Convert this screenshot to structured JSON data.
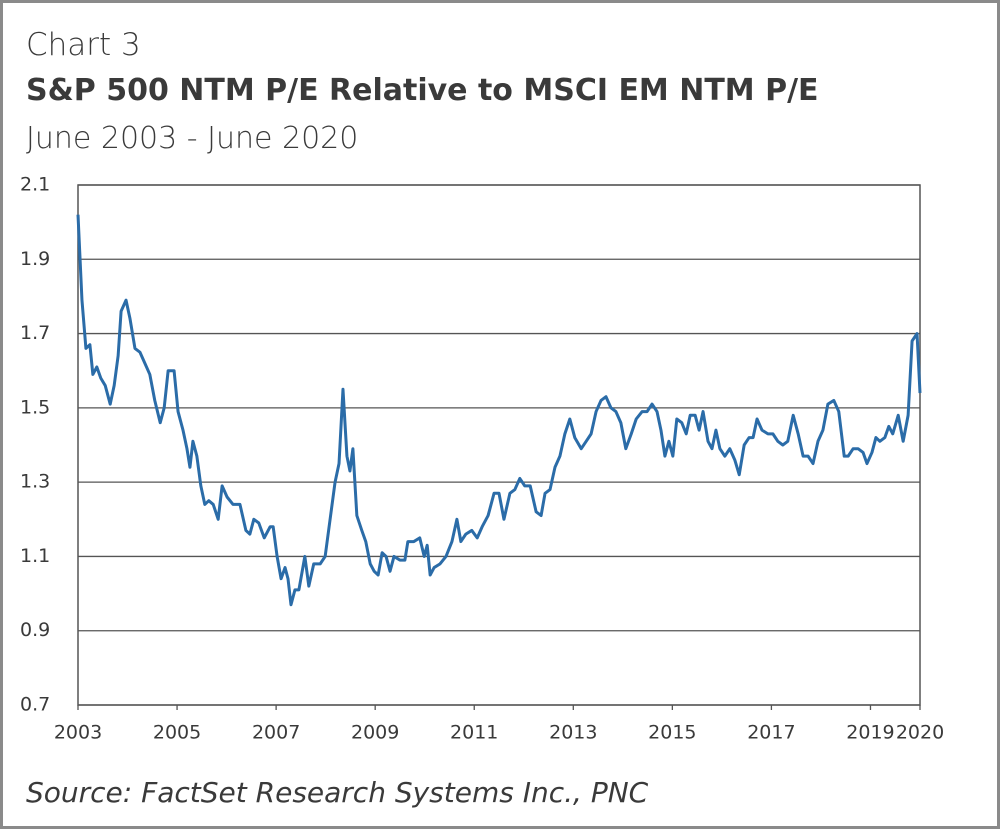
{
  "chart_data": {
    "type": "line",
    "label": "Chart 3",
    "title": "S&P 500 NTM P/E Relative to MSCI EM NTM P/E",
    "subtitle": "June 2003 - June 2020",
    "source": "Source: FactSet Research Systems Inc., PNC",
    "color": "#2b6ca8",
    "grid": true,
    "xlim": [
      2003,
      2020
    ],
    "xticks": [
      2003,
      2005,
      2007,
      2009,
      2011,
      2013,
      2015,
      2017,
      2019,
      2020
    ],
    "ylim": [
      0.7,
      2.1
    ],
    "yticks": [
      2.1,
      1.9,
      1.7,
      1.5,
      1.3,
      1.1,
      0.9,
      0.7
    ],
    "x": [
      2003.0,
      2003.08,
      2003.16,
      2003.24,
      2003.3,
      2003.38,
      2003.46,
      2003.55,
      2003.65,
      2003.73,
      2003.81,
      2003.87,
      2003.97,
      2004.05,
      2004.15,
      2004.25,
      2004.35,
      2004.45,
      2004.55,
      2004.66,
      2004.74,
      2004.82,
      2004.94,
      2005.02,
      2005.12,
      2005.2,
      2005.26,
      2005.32,
      2005.4,
      2005.48,
      2005.56,
      2005.64,
      2005.73,
      2005.83,
      2005.91,
      2006.01,
      2006.13,
      2006.27,
      2006.39,
      2006.47,
      2006.55,
      2006.65,
      2006.76,
      2006.88,
      2006.94,
      2007.02,
      2007.1,
      2007.18,
      2007.24,
      2007.3,
      2007.38,
      2007.46,
      2007.58,
      2007.66,
      2007.76,
      2007.89,
      2007.99,
      2008.09,
      2008.19,
      2008.27,
      2008.35,
      2008.43,
      2008.49,
      2008.55,
      2008.63,
      2008.73,
      2008.81,
      2008.9,
      2008.98,
      2009.06,
      2009.14,
      2009.22,
      2009.3,
      2009.38,
      2009.5,
      2009.6,
      2009.66,
      2009.78,
      2009.9,
      2009.99,
      2010.05,
      2010.11,
      2010.19,
      2010.31,
      2010.43,
      2010.55,
      2010.65,
      2010.73,
      2010.83,
      2010.95,
      2011.06,
      2011.16,
      2011.28,
      2011.4,
      2011.5,
      2011.6,
      2011.72,
      2011.82,
      2011.92,
      2012.02,
      2012.13,
      2012.25,
      2012.35,
      2012.43,
      2012.53,
      2012.63,
      2012.73,
      2012.83,
      2012.93,
      2013.03,
      2013.16,
      2013.26,
      2013.36,
      2013.46,
      2013.56,
      2013.66,
      2013.76,
      2013.86,
      2013.96,
      2014.06,
      2014.17,
      2014.27,
      2014.39,
      2014.49,
      2014.59,
      2014.69,
      2014.77,
      2014.85,
      2014.93,
      2015.01,
      2015.09,
      2015.19,
      2015.28,
      2015.36,
      2015.46,
      2015.54,
      2015.62,
      2015.72,
      2015.8,
      2015.88,
      2015.96,
      2016.06,
      2016.16,
      2016.26,
      2016.35,
      2016.45,
      2016.55,
      2016.63,
      2016.71,
      2016.81,
      2016.93,
      2017.03,
      2017.13,
      2017.23,
      2017.33,
      2017.44,
      2017.54,
      2017.64,
      2017.74,
      2017.84,
      2017.94,
      2018.04,
      2018.14,
      2018.26,
      2018.36,
      2018.47,
      2018.55,
      2018.65,
      2018.75,
      2018.85,
      2018.93,
      2019.03,
      2019.11,
      2019.19,
      2019.29,
      2019.37,
      2019.45,
      2019.56,
      2019.66,
      2019.76,
      2019.84,
      2019.94,
      2020.0
    ],
    "values": [
      2.02,
      1.79,
      1.66,
      1.67,
      1.59,
      1.61,
      1.58,
      1.56,
      1.51,
      1.56,
      1.64,
      1.76,
      1.79,
      1.74,
      1.66,
      1.65,
      1.62,
      1.59,
      1.52,
      1.46,
      1.5,
      1.6,
      1.6,
      1.49,
      1.44,
      1.39,
      1.34,
      1.41,
      1.37,
      1.29,
      1.24,
      1.25,
      1.24,
      1.2,
      1.29,
      1.26,
      1.24,
      1.24,
      1.17,
      1.16,
      1.2,
      1.19,
      1.15,
      1.18,
      1.18,
      1.1,
      1.04,
      1.07,
      1.04,
      0.97,
      1.01,
      1.01,
      1.1,
      1.02,
      1.08,
      1.08,
      1.1,
      1.2,
      1.3,
      1.35,
      1.55,
      1.37,
      1.33,
      1.39,
      1.21,
      1.17,
      1.14,
      1.08,
      1.06,
      1.05,
      1.11,
      1.1,
      1.06,
      1.1,
      1.09,
      1.09,
      1.14,
      1.14,
      1.15,
      1.1,
      1.13,
      1.05,
      1.07,
      1.08,
      1.1,
      1.14,
      1.2,
      1.14,
      1.16,
      1.17,
      1.15,
      1.18,
      1.21,
      1.27,
      1.27,
      1.2,
      1.27,
      1.28,
      1.31,
      1.29,
      1.29,
      1.22,
      1.21,
      1.27,
      1.28,
      1.34,
      1.37,
      1.43,
      1.47,
      1.42,
      1.39,
      1.41,
      1.43,
      1.49,
      1.52,
      1.53,
      1.5,
      1.49,
      1.46,
      1.39,
      1.43,
      1.47,
      1.49,
      1.49,
      1.51,
      1.49,
      1.44,
      1.37,
      1.41,
      1.37,
      1.47,
      1.46,
      1.43,
      1.48,
      1.48,
      1.44,
      1.49,
      1.41,
      1.39,
      1.44,
      1.39,
      1.37,
      1.39,
      1.36,
      1.32,
      1.4,
      1.42,
      1.42,
      1.47,
      1.44,
      1.43,
      1.43,
      1.41,
      1.4,
      1.41,
      1.48,
      1.43,
      1.37,
      1.37,
      1.35,
      1.41,
      1.44,
      1.51,
      1.52,
      1.49,
      1.37,
      1.37,
      1.39,
      1.39,
      1.38,
      1.35,
      1.38,
      1.42,
      1.41,
      1.42,
      1.45,
      1.43,
      1.48,
      1.41,
      1.48,
      1.68,
      1.7,
      1.54
    ]
  }
}
